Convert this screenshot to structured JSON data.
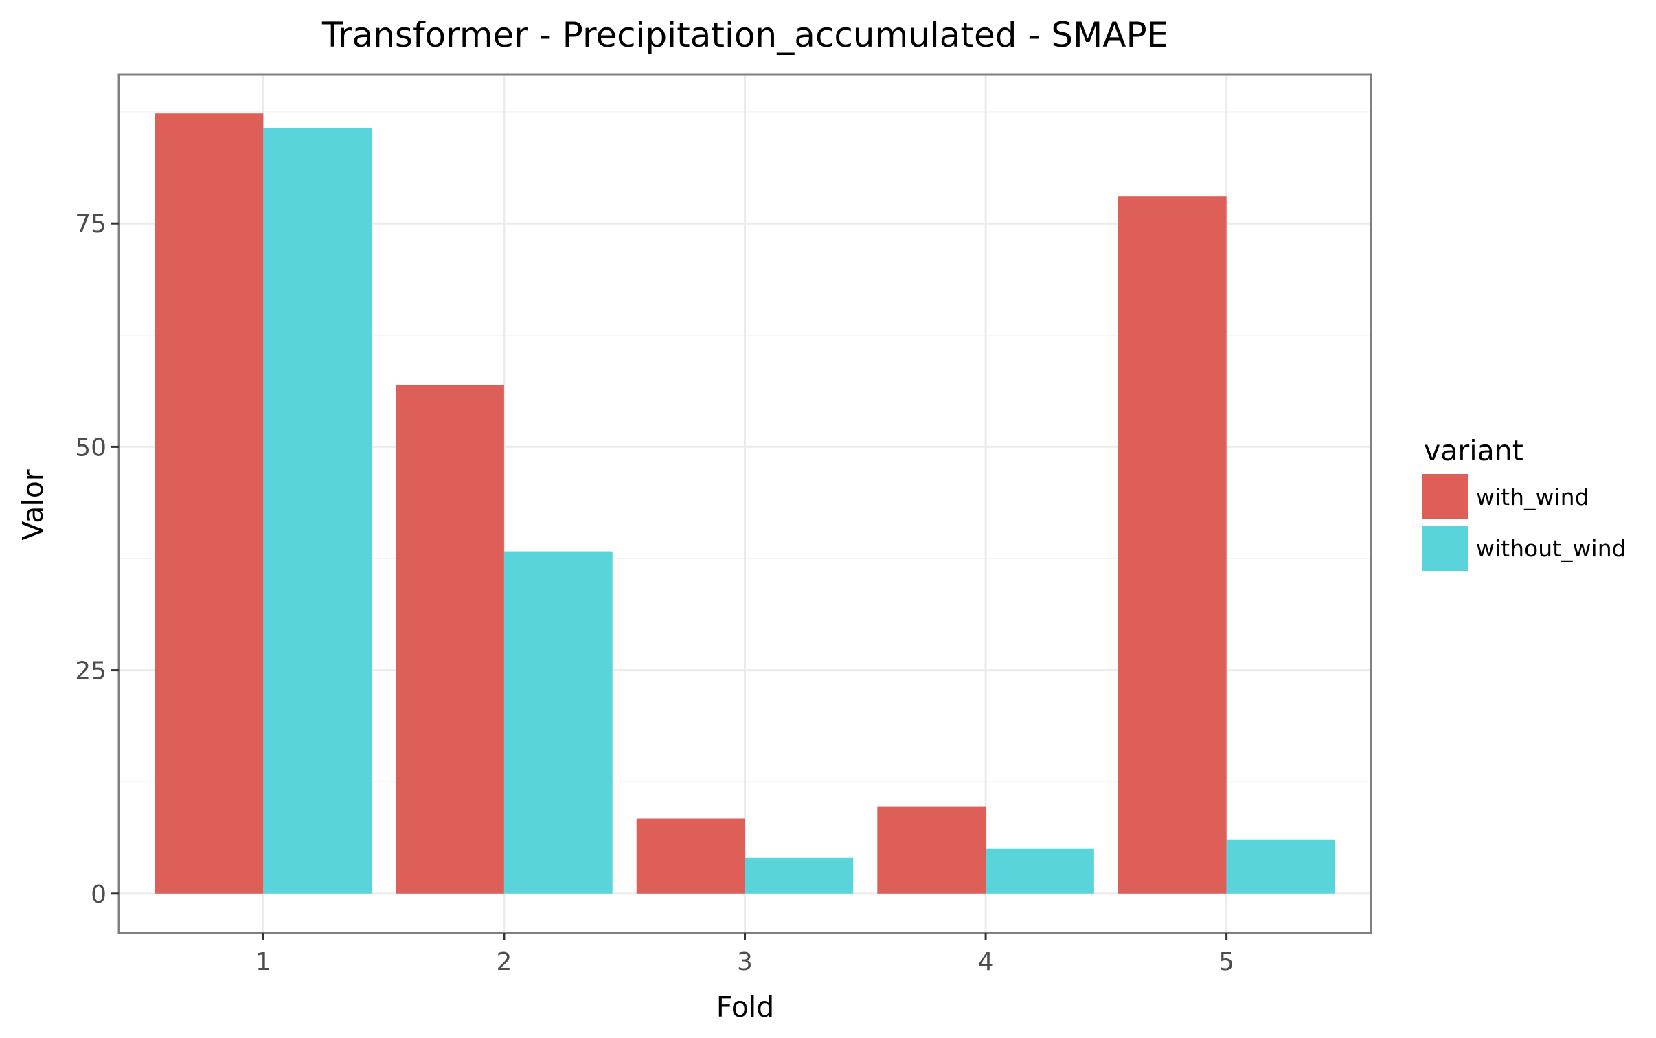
{
  "chart_data": {
    "type": "bar",
    "title": "Transformer - Precipitation_accumulated - SMAPE",
    "xlabel": "Fold",
    "ylabel": "Valor",
    "categories": [
      "1",
      "2",
      "3",
      "4",
      "5"
    ],
    "series": [
      {
        "name": "with_wind",
        "color": "#DD5F57",
        "values": [
          87.3,
          56.9,
          8.4,
          9.7,
          78.0
        ]
      },
      {
        "name": "without_wind",
        "color": "#59D4DB",
        "values": [
          85.7,
          38.3,
          4.0,
          5.0,
          6.0
        ]
      }
    ],
    "yticks": [
      0,
      25,
      50,
      75
    ],
    "ylim": [
      -4.4,
      91.7
    ],
    "legend": {
      "title": "variant",
      "position": "right"
    },
    "grid": true,
    "panel_border_color": "#7f7f7f",
    "grid_color": "#ebebeb"
  }
}
